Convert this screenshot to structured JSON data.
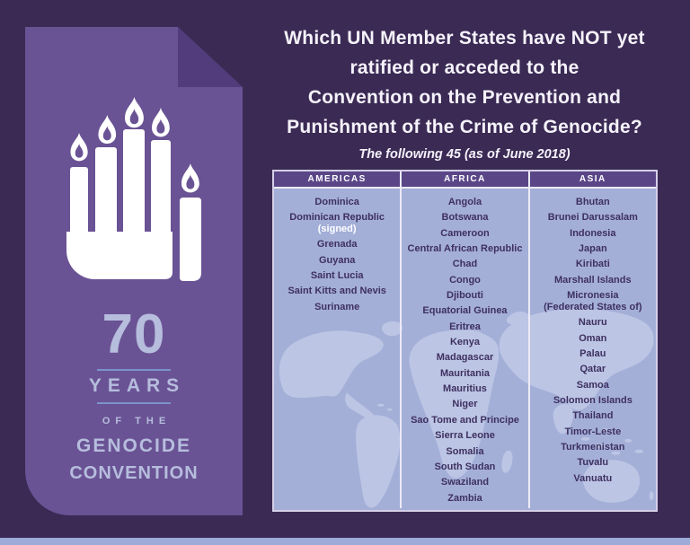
{
  "colors": {
    "bg": "#3a2a54",
    "page": "#6a5394",
    "fold": "#523c7c",
    "lilac": "#b6bddd",
    "rule": "#7b93cb",
    "white": "#f5f2fa",
    "header_bg": "#5a4687",
    "body_bg": "#a4afd8",
    "map": "#bcc5e4",
    "ctext": "#3e3060",
    "tborder": "#d6d0e8",
    "divider": "#eceaf6",
    "strip": "#9dabd9",
    "signed": "#ffffff"
  },
  "badge": {
    "number": "70",
    "years": "YEARS",
    "of_the": "OF THE",
    "genocide": "GENOCIDE",
    "convention": "CONVENTION"
  },
  "title": {
    "lines": [
      "Which UN Member States have NOT yet",
      "ratified or acceded to the",
      "Convention on the Prevention and",
      "Punishment of the Crime of Genocide?"
    ]
  },
  "subtitle": "The following 45 (as of June 2018)",
  "icons": {
    "hand_candles": "memorial-hand-of-five-lit-candles",
    "page_fold": "folded-page-corner"
  },
  "table": {
    "columns": [
      {
        "header": "AMERICAS",
        "items": [
          {
            "name": "Dominica"
          },
          {
            "name": "Dominican Republic",
            "note": "(signed)"
          },
          {
            "name": "Grenada"
          },
          {
            "name": "Guyana"
          },
          {
            "name": "Saint Lucia"
          },
          {
            "name": "Saint Kitts and Nevis"
          },
          {
            "name": "Suriname"
          }
        ]
      },
      {
        "header": "AFRICA",
        "items": [
          {
            "name": "Angola"
          },
          {
            "name": "Botswana"
          },
          {
            "name": "Cameroon"
          },
          {
            "name": "Central African Republic"
          },
          {
            "name": "Chad"
          },
          {
            "name": "Congo"
          },
          {
            "name": "Djibouti"
          },
          {
            "name": "Equatorial Guinea"
          },
          {
            "name": "Eritrea"
          },
          {
            "name": "Kenya"
          },
          {
            "name": "Madagascar"
          },
          {
            "name": "Mauritania"
          },
          {
            "name": "Mauritius"
          },
          {
            "name": "Niger"
          },
          {
            "name": "Sao Tome and Principe"
          },
          {
            "name": "Sierra Leone"
          },
          {
            "name": "Somalia"
          },
          {
            "name": "South Sudan"
          },
          {
            "name": "Swaziland"
          },
          {
            "name": "Zambia"
          }
        ]
      },
      {
        "header": "ASIA",
        "items": [
          {
            "name": "Bhutan"
          },
          {
            "name": "Brunei Darussalam"
          },
          {
            "name": "Indonesia"
          },
          {
            "name": "Japan"
          },
          {
            "name": "Kiribati"
          },
          {
            "name": "Marshall Islands"
          },
          {
            "name": "Micronesia",
            "sub": "(Federated States of)"
          },
          {
            "name": "Nauru"
          },
          {
            "name": "Oman"
          },
          {
            "name": "Palau"
          },
          {
            "name": "Qatar"
          },
          {
            "name": "Samoa"
          },
          {
            "name": "Solomon Islands"
          },
          {
            "name": "Thailand"
          },
          {
            "name": "Timor-Leste"
          },
          {
            "name": "Turkmenistan"
          },
          {
            "name": "Tuvalu"
          },
          {
            "name": "Vanuatu"
          }
        ]
      }
    ]
  }
}
